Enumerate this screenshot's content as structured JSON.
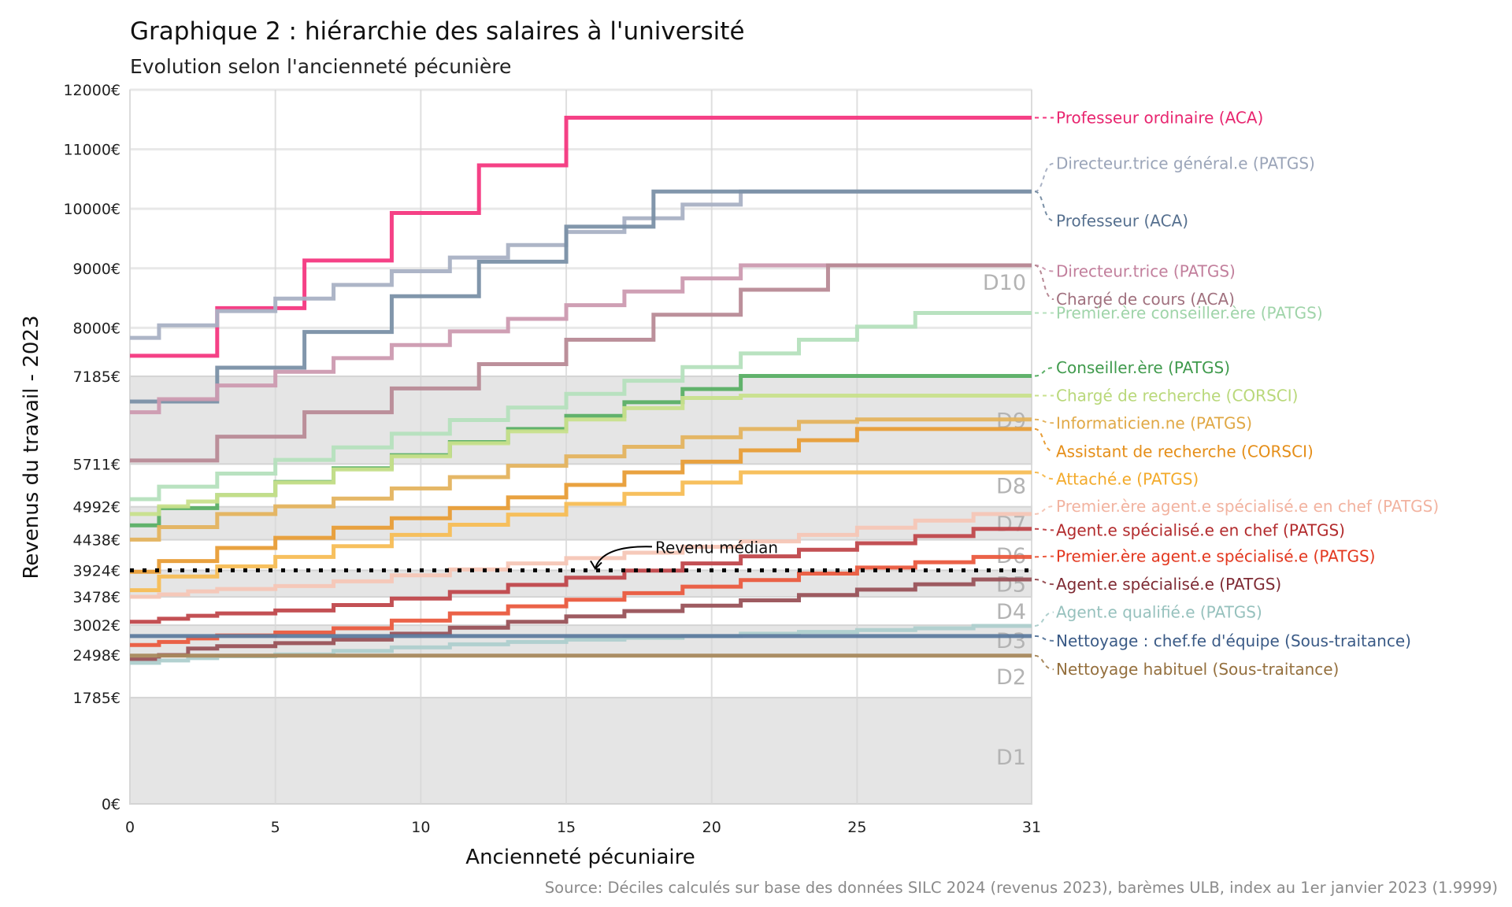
{
  "chart_data": {
    "type": "line",
    "step": true,
    "title": "Graphique 2 : hiérarchie des salaires à l'université",
    "subtitle": "Evolution selon l'ancienneté pécunière",
    "xlabel": "Ancienneté pécuniaire",
    "ylabel": "Revenus du travail - 2023",
    "xlim": [
      0,
      31
    ],
    "ylim": [
      0,
      12000
    ],
    "x_ticks": [
      0,
      5,
      10,
      15,
      20,
      25,
      31
    ],
    "y_ticks": [
      0,
      1785,
      2498,
      3002,
      3478,
      3924,
      4438,
      4992,
      5711,
      7185,
      8000,
      9000,
      10000,
      11000,
      12000
    ],
    "y_tick_suffix": "€",
    "grid": true,
    "source": "Source: Déciles calculés sur base des données SILC 2024 (revenus 2023), barèmes ULB, index au 1er janvier 2023 (1.9999)",
    "median": {
      "value": 3924,
      "label": "Revenu médian",
      "label_x": 16
    },
    "decile_bands": [
      {
        "label": "D1",
        "from": 0,
        "to": 1785,
        "shaded": true
      },
      {
        "label": "D2",
        "from": 1785,
        "to": 2498,
        "shaded": false
      },
      {
        "label": "D3",
        "from": 2498,
        "to": 3002,
        "shaded": true
      },
      {
        "label": "D4",
        "from": 3002,
        "to": 3478,
        "shaded": false
      },
      {
        "label": "D5",
        "from": 3478,
        "to": 3924,
        "shaded": true
      },
      {
        "label": "D6",
        "from": 3924,
        "to": 4438,
        "shaded": false
      },
      {
        "label": "D7",
        "from": 4438,
        "to": 4992,
        "shaded": true
      },
      {
        "label": "D8",
        "from": 4992,
        "to": 5711,
        "shaded": false
      },
      {
        "label": "D9",
        "from": 5711,
        "to": 7185,
        "shaded": true
      },
      {
        "label": "D10",
        "from": 7185,
        "to": 12000,
        "shaded": false
      }
    ],
    "series": [
      {
        "name": "Professeur ordinaire (ACA)",
        "color": "#f4377f",
        "label_color": "#e8256f",
        "label_y": 11530,
        "x": [
          0,
          3,
          6,
          9,
          12,
          15,
          31
        ],
        "values": [
          7530,
          8330,
          9130,
          9930,
          10730,
          11530,
          11530
        ]
      },
      {
        "name": "Directeur.trice général.e (PATGS)",
        "color": "#a9b1c4",
        "label_color": "#9aa4b8",
        "label_y": 10760,
        "x": [
          0,
          1,
          3,
          5,
          7,
          9,
          11,
          13,
          15,
          17,
          19,
          21,
          31
        ],
        "values": [
          7830,
          8040,
          8280,
          8490,
          8720,
          8950,
          9180,
          9390,
          9610,
          9840,
          10070,
          10290,
          10290
        ]
      },
      {
        "name": "Professeur (ACA)",
        "color": "#7a90a6",
        "label_color": "#56708f",
        "label_y": 9800,
        "x": [
          0,
          3,
          6,
          9,
          12,
          15,
          18,
          31
        ],
        "values": [
          6760,
          7330,
          7930,
          8530,
          9110,
          9700,
          10290,
          10290
        ]
      },
      {
        "name": "Directeur.trice (PATGS)",
        "color": "#cc9ab0",
        "label_color": "#c27f9c",
        "label_y": 8950,
        "x": [
          0,
          1,
          3,
          5,
          7,
          9,
          11,
          13,
          15,
          17,
          19,
          21,
          31
        ],
        "values": [
          6580,
          6800,
          7030,
          7260,
          7490,
          7710,
          7940,
          8150,
          8380,
          8610,
          8830,
          9050,
          9050
        ]
      },
      {
        "name": "Chargé de cours (ACA)",
        "color": "#b88a96",
        "label_color": "#a0707e",
        "label_y": 8480,
        "x": [
          0,
          3,
          6,
          9,
          12,
          15,
          18,
          21,
          24,
          31
        ],
        "values": [
          5770,
          6170,
          6580,
          6980,
          7390,
          7800,
          8220,
          8640,
          9050,
          9050
        ]
      },
      {
        "name": "Premier.ère conseiller.ère (PATGS)",
        "color": "#b5e0bd",
        "label_color": "#9fd4a9",
        "label_y": 8250,
        "x": [
          0,
          1,
          3,
          5,
          7,
          9,
          11,
          13,
          15,
          17,
          19,
          21,
          23,
          25,
          27,
          31
        ],
        "values": [
          5120,
          5330,
          5550,
          5780,
          5990,
          6220,
          6450,
          6660,
          6890,
          7110,
          7340,
          7570,
          7800,
          8020,
          8250,
          8250
        ]
      },
      {
        "name": "Conseiller.ère (PATGS)",
        "color": "#5aaf65",
        "label_color": "#3f9a4c",
        "label_y": 7330,
        "x": [
          0,
          1,
          3,
          5,
          7,
          9,
          11,
          13,
          15,
          17,
          19,
          21,
          31
        ],
        "values": [
          4680,
          4970,
          5190,
          5410,
          5640,
          5860,
          6080,
          6300,
          6520,
          6750,
          6970,
          7190,
          7190
        ]
      },
      {
        "name": "Chargé de recherche (CORSCI)",
        "color": "#c8e08c",
        "label_color": "#b9d87a",
        "label_y": 6860,
        "x": [
          0,
          1,
          2,
          3,
          5,
          7,
          9,
          11,
          13,
          15,
          17,
          19,
          21,
          31
        ],
        "values": [
          4870,
          5000,
          5080,
          5190,
          5400,
          5620,
          5840,
          6060,
          6260,
          6460,
          6650,
          6820,
          6860,
          6860
        ]
      },
      {
        "name": "Informaticien.ne (PATGS)",
        "color": "#e4b35e",
        "label_color": "#e0a845",
        "label_y": 6400,
        "x": [
          0,
          1,
          3,
          5,
          7,
          9,
          11,
          13,
          15,
          17,
          19,
          21,
          23,
          25,
          31
        ],
        "values": [
          4440,
          4650,
          4870,
          5000,
          5130,
          5300,
          5490,
          5680,
          5840,
          6000,
          6160,
          6300,
          6420,
          6460,
          6460
        ]
      },
      {
        "name": "Assistant de recherche (CORSCI)",
        "color": "#e89d36",
        "label_color": "#e58e18",
        "label_y": 5920,
        "x": [
          0,
          1,
          3,
          5,
          7,
          9,
          11,
          13,
          15,
          17,
          19,
          21,
          23,
          25,
          31
        ],
        "values": [
          3900,
          4080,
          4300,
          4470,
          4640,
          4800,
          4970,
          5150,
          5360,
          5570,
          5750,
          5940,
          6110,
          6300,
          6300
        ]
      },
      {
        "name": "Attaché.e (PATGS)",
        "color": "#f7bd55",
        "label_color": "#f3aa2a",
        "label_y": 5460,
        "x": [
          0,
          1,
          3,
          5,
          7,
          9,
          11,
          13,
          15,
          17,
          19,
          21,
          31
        ],
        "values": [
          3590,
          3820,
          3990,
          4150,
          4330,
          4520,
          4690,
          4860,
          5040,
          5210,
          5400,
          5570,
          5570
        ]
      },
      {
        "name": "Premier.ère agent.e spécialisé.e en chef (PATGS)",
        "color": "#f5c6b6",
        "label_color": "#f2b3a0",
        "label_y": 5000,
        "x": [
          0,
          1,
          2,
          3,
          5,
          7,
          9,
          11,
          13,
          15,
          17,
          19,
          21,
          23,
          25,
          27,
          29,
          31
        ],
        "values": [
          3480,
          3520,
          3570,
          3610,
          3660,
          3740,
          3840,
          3940,
          4040,
          4130,
          4220,
          4320,
          4410,
          4520,
          4640,
          4760,
          4870,
          4870
        ]
      },
      {
        "name": "Agent.e spécialisé.e en chef (PATGS)",
        "color": "#c0474b",
        "label_color": "#b22a2c",
        "label_y": 4600,
        "x": [
          0,
          1,
          2,
          3,
          5,
          7,
          9,
          11,
          13,
          15,
          17,
          19,
          21,
          23,
          25,
          27,
          29,
          31
        ],
        "values": [
          3060,
          3110,
          3160,
          3200,
          3250,
          3340,
          3450,
          3560,
          3680,
          3800,
          3920,
          4040,
          4160,
          4270,
          4380,
          4500,
          4620,
          4620
        ]
      },
      {
        "name": "Premier.ère agent.e spécialisé.e (PATGS)",
        "color": "#ea5a3e",
        "label_color": "#e3371e",
        "label_y": 4160,
        "x": [
          0,
          1,
          2,
          3,
          5,
          7,
          9,
          11,
          13,
          15,
          17,
          19,
          21,
          23,
          25,
          27,
          29,
          31
        ],
        "values": [
          2670,
          2720,
          2780,
          2830,
          2880,
          2950,
          3080,
          3200,
          3320,
          3430,
          3540,
          3650,
          3760,
          3870,
          3970,
          4060,
          4150,
          4150
        ]
      },
      {
        "name": "Agent.e spécialisé.e (PATGS)",
        "color": "#995258",
        "label_color": "#7e2a33",
        "label_y": 3690,
        "x": [
          0,
          1,
          2,
          3,
          5,
          7,
          9,
          11,
          13,
          15,
          17,
          19,
          21,
          23,
          25,
          27,
          29,
          31
        ],
        "values": [
          2430,
          2500,
          2610,
          2650,
          2700,
          2760,
          2860,
          2960,
          3060,
          3150,
          3240,
          3330,
          3420,
          3510,
          3600,
          3690,
          3770,
          3770
        ]
      },
      {
        "name": "Agent.e qualifié.e (PATGS)",
        "color": "#aecfcd",
        "label_color": "#96c1bd",
        "label_y": 3220,
        "x": [
          0,
          1,
          2,
          3,
          5,
          7,
          9,
          11,
          13,
          15,
          17,
          19,
          21,
          23,
          25,
          27,
          29,
          31
        ],
        "values": [
          2370,
          2410,
          2450,
          2480,
          2510,
          2570,
          2630,
          2680,
          2720,
          2760,
          2790,
          2820,
          2860,
          2890,
          2920,
          2950,
          2990,
          2990
        ]
      },
      {
        "name": "Nettoyage : chef.fe d'équipe (Sous-traitance)",
        "color": "#5e7b9e",
        "label_color": "#3a5a86",
        "label_y": 2740,
        "x": [
          0,
          31
        ],
        "values": [
          2820,
          2820
        ]
      },
      {
        "name": "Nettoyage habituel (Sous-traitance)",
        "color": "#a8895d",
        "label_color": "#946f3d",
        "label_y": 2260,
        "x": [
          0,
          31
        ],
        "values": [
          2490,
          2490
        ]
      }
    ]
  }
}
